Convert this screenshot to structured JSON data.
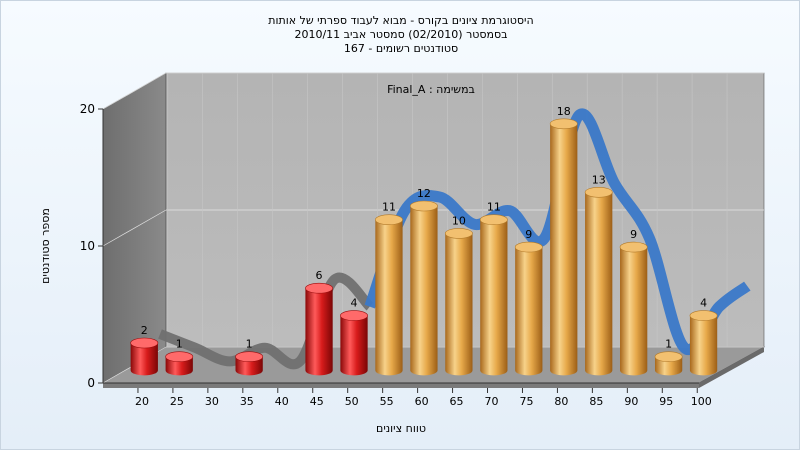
{
  "chart_data": {
    "type": "bar",
    "title_lines": [
      "היסטוגרמת ציונים בקורס - מבוא לעבוד ספרתי של אותות",
      "בסמסטר  (02/2010)  סמסטר אביב 2010/11",
      "סטודנטים רשומים - 167"
    ],
    "annotation": "Final_A : במשימה",
    "xlabel": "טווח ציונים",
    "ylabel": "מספר סטודנטים",
    "categories": [
      "20",
      "25",
      "30",
      "35",
      "40",
      "45",
      "50",
      "55",
      "60",
      "65",
      "70",
      "75",
      "80",
      "85",
      "90",
      "95",
      "100"
    ],
    "values": [
      2,
      1,
      0,
      1,
      0,
      6,
      4,
      11,
      12,
      10,
      11,
      9,
      18,
      13,
      9,
      1,
      4
    ],
    "bar_colors": [
      "#d81c1c",
      "#d81c1c",
      "#d81c1c",
      "#d81c1c",
      "#d81c1c",
      "#d81c1c",
      "#d81c1c",
      "#e7a94a",
      "#e7a94a",
      "#e7a94a",
      "#e7a94a",
      "#e7a94a",
      "#e7a94a",
      "#e7a94a",
      "#e7a94a",
      "#e7a94a",
      "#e7a94a"
    ],
    "yticks": [
      0,
      10,
      20
    ],
    "ylim": [
      0,
      20
    ],
    "curve_color_low": "#707070",
    "curve_color_high": "#3a78c8",
    "grid": true,
    "style": "3d"
  }
}
